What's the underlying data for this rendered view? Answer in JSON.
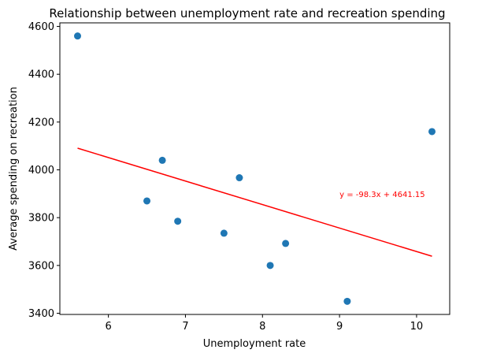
{
  "chart_data": {
    "type": "scatter",
    "title": "Relationship between unemployment rate and recreation spending",
    "xlabel": "Unemployment rate",
    "ylabel": "Average spending on recreation",
    "xlim": [
      5.37,
      10.43
    ],
    "ylim": [
      3395,
      4615
    ],
    "xticks": [
      6,
      7,
      8,
      9,
      10
    ],
    "yticks": [
      3400,
      3600,
      3800,
      4000,
      4200,
      4400,
      4600
    ],
    "grid": false,
    "points": [
      {
        "x": 5.6,
        "y": 4560
      },
      {
        "x": 6.5,
        "y": 3870
      },
      {
        "x": 6.7,
        "y": 4040
      },
      {
        "x": 6.9,
        "y": 3785
      },
      {
        "x": 7.5,
        "y": 3735
      },
      {
        "x": 7.7,
        "y": 3967
      },
      {
        "x": 8.1,
        "y": 3600
      },
      {
        "x": 8.3,
        "y": 3692
      },
      {
        "x": 9.1,
        "y": 3450
      },
      {
        "x": 10.2,
        "y": 4160
      }
    ],
    "trendline": {
      "slope": -98.3,
      "intercept": 4641.15,
      "x_range": [
        5.6,
        10.2
      ],
      "label": "y = -98.3x + 4641.15",
      "label_x": 9.0,
      "label_y": 3900,
      "color": "#ff0000"
    },
    "point_color": "#1f77b4"
  }
}
